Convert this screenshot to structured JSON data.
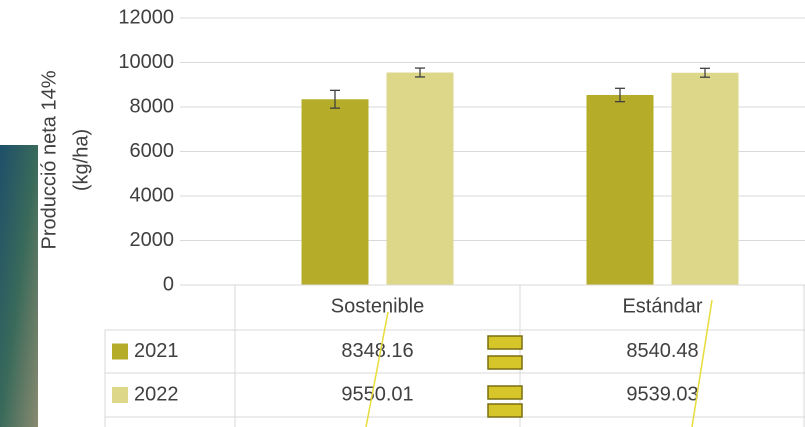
{
  "chart_data": {
    "type": "bar",
    "ylabel": [
      "Producció neta 14%",
      "(kg/ha)"
    ],
    "categories": [
      "Sostenible",
      "Estándar"
    ],
    "series": [
      {
        "name": "2021",
        "color": "#b5ad2a",
        "values": [
          8348.16,
          8540.48
        ],
        "errors": [
          400,
          300
        ]
      },
      {
        "name": "2022",
        "color": "#ddd78a",
        "values": [
          9550.01,
          9539.03
        ],
        "errors": [
          200,
          200
        ]
      }
    ],
    "ylim": [
      0,
      12000
    ],
    "yticks": [
      0,
      2000,
      4000,
      6000,
      8000,
      10000,
      12000
    ],
    "grid": true,
    "data_table": true
  }
}
